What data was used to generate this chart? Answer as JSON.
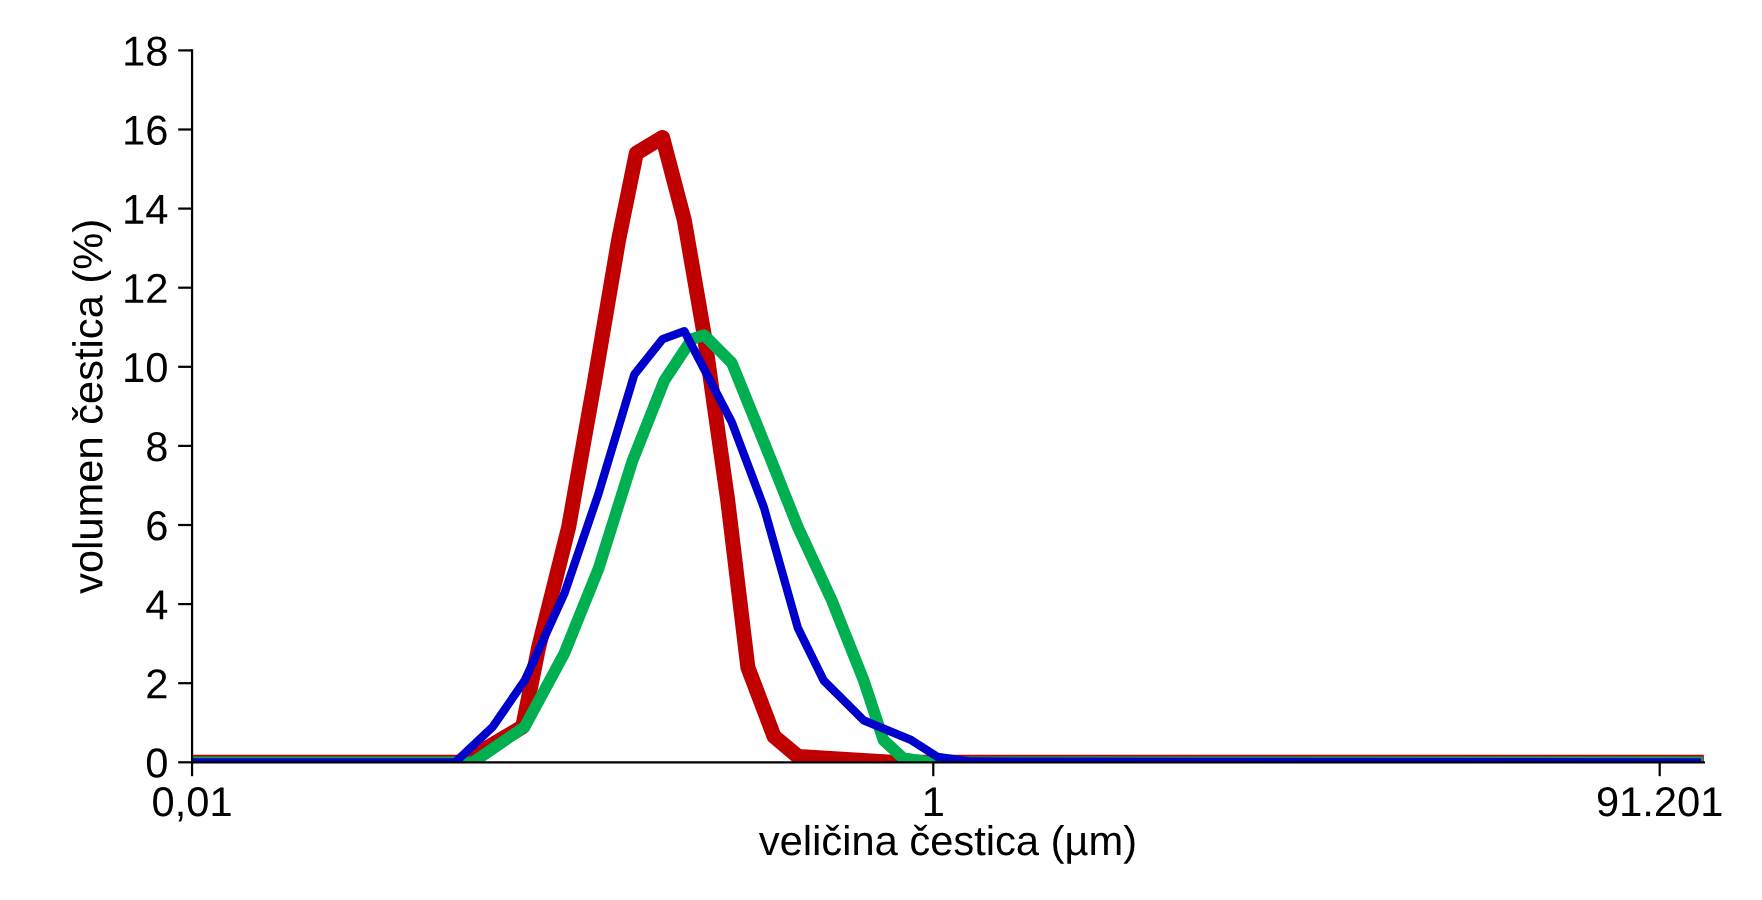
{
  "chart_data": {
    "type": "line",
    "xlabel": "veličina čestica (µm)",
    "ylabel": "volumen čestica (%)",
    "log": "x",
    "xlim": [
      0.01,
      120
    ],
    "xticks": [
      {
        "value": 0.01,
        "label": "0,01"
      },
      1,
      {
        "value": 91.201,
        "label": "91.201"
      }
    ],
    "ylim": [
      0,
      18
    ],
    "yticks": [
      0,
      2,
      4,
      6,
      8,
      10,
      12,
      14,
      16,
      18
    ],
    "grid": false,
    "legend": false,
    "marker": "none",
    "line_style": "solid",
    "series": [
      {
        "color": "#c00000",
        "x": [
          0.01,
          0.0538,
          0.078,
          0.0861,
          0.1038,
          0.122,
          0.1415,
          0.158,
          0.186,
          0.213,
          0.241,
          0.279,
          0.316,
          0.372,
          0.431,
          0.771,
          115
        ],
        "values": [
          0,
          0,
          0.9,
          2.9,
          5.95,
          9.65,
          13.2,
          15.4,
          15.8,
          13.7,
          10.8,
          6.6,
          2.4,
          0.65,
          0.15,
          0,
          0
        ]
      },
      {
        "color": "#00b050",
        "x": [
          0.01,
          0.0573,
          0.079,
          0.101,
          0.125,
          0.154,
          0.188,
          0.223,
          0.241,
          0.286,
          0.349,
          0.431,
          0.532,
          0.649,
          0.734,
          0.83,
          0.989,
          115
        ],
        "values": [
          0,
          0,
          0.9,
          2.75,
          4.9,
          7.6,
          9.65,
          10.7,
          10.8,
          10.1,
          8.1,
          5.95,
          4.1,
          2.07,
          0.56,
          0.1,
          0,
          0
        ]
      },
      {
        "color": "#0000cc",
        "x": [
          0.01,
          0.0513,
          0.0648,
          0.079,
          0.101,
          0.125,
          0.156,
          0.186,
          0.213,
          0.286,
          0.349,
          0.431,
          0.506,
          0.649,
          0.873,
          1.025,
          1.265,
          115
        ],
        "values": [
          0,
          0,
          0.9,
          2.07,
          4.26,
          6.8,
          9.8,
          10.7,
          10.9,
          8.6,
          6.45,
          3.4,
          2.07,
          1.06,
          0.56,
          0.14,
          0.02,
          0
        ]
      }
    ]
  }
}
